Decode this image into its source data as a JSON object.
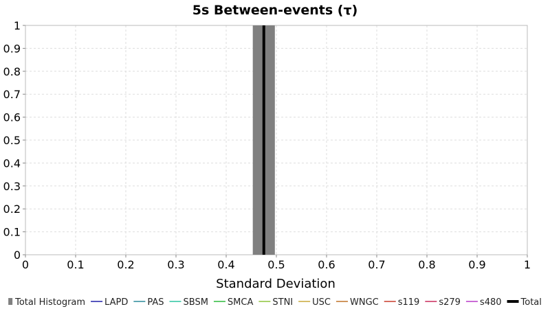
{
  "chart_data": {
    "type": "bar",
    "title": "5s Between-events (τ)",
    "xlabel": "Standard Deviation",
    "ylabel": "",
    "xlim": [
      0,
      1
    ],
    "ylim": [
      0,
      1
    ],
    "x_ticks": [
      "0",
      "0.1",
      "0.2",
      "0.3",
      "0.4",
      "0.5",
      "0.6",
      "0.7",
      "0.8",
      "0.9",
      "1"
    ],
    "y_ticks": [
      "0",
      "0.1",
      "0.2",
      "0.3",
      "0.4",
      "0.5",
      "0.6",
      "0.7",
      "0.8",
      "0.9",
      "1"
    ],
    "grid": true,
    "legend_position": "bottom",
    "histogram": {
      "name": "Total Histogram",
      "color": "#808080",
      "bins": [
        {
          "x0": 0.453,
          "x1": 0.497,
          "value": 1
        }
      ]
    },
    "lines": [
      {
        "name": "Total",
        "color": "#000000",
        "x": 0.475,
        "y": [
          0,
          1
        ]
      }
    ],
    "legend": [
      {
        "label": "Total Histogram",
        "color": "#808080",
        "style": "box"
      },
      {
        "label": "LAPD",
        "color": "#1f1fa8",
        "style": "line"
      },
      {
        "label": "PAS",
        "color": "#2a8a9a",
        "style": "line"
      },
      {
        "label": "SBSM",
        "color": "#2ac4a0",
        "style": "line"
      },
      {
        "label": "SMCA",
        "color": "#2cba3a",
        "style": "line"
      },
      {
        "label": "STNI",
        "color": "#8ec43a",
        "style": "line"
      },
      {
        "label": "USC",
        "color": "#c8a838",
        "style": "line"
      },
      {
        "label": "WNGC",
        "color": "#c07428",
        "style": "line"
      },
      {
        "label": "s119",
        "color": "#c83a2a",
        "style": "line"
      },
      {
        "label": "s279",
        "color": "#c82a5a",
        "style": "line"
      },
      {
        "label": "s480",
        "color": "#b83ac8",
        "style": "line"
      },
      {
        "label": "Total",
        "color": "#000000",
        "style": "thick-line"
      }
    ]
  }
}
